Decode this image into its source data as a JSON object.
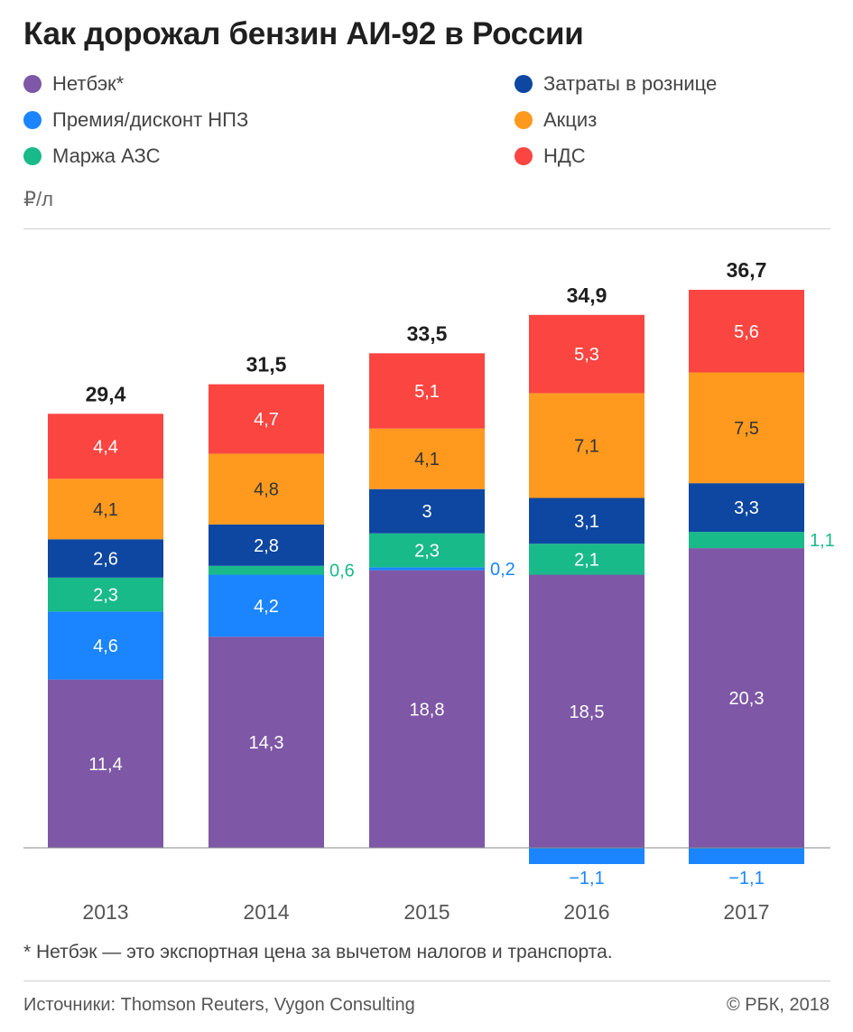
{
  "title": "Как дорожал бензин АИ-92 в России",
  "unit": "₽/л",
  "footnote": "* Нетбэк — это экспортная цена за вычетом налогов и транспорта.",
  "source": "Источники: Thomson Reuters, Vygon Consulting",
  "copyright": "© РБК, 2018",
  "chart_data": {
    "type": "bar",
    "stacked": true,
    "categories": [
      "2013",
      "2014",
      "2015",
      "2016",
      "2017"
    ],
    "totals": [
      "29,4",
      "31,5",
      "33,5",
      "34,9",
      "36,7"
    ],
    "legend_position": "top",
    "grid": false,
    "ylabel": "₽/л",
    "series": [
      {
        "key": "netback",
        "name": "Нетбэк*",
        "color": "#7e57a6",
        "values": [
          11.4,
          14.3,
          18.8,
          18.5,
          20.3
        ],
        "labels": [
          "11,4",
          "14,3",
          "18,8",
          "18,5",
          "20,3"
        ]
      },
      {
        "key": "premium",
        "name": "Премия/дисконт НПЗ",
        "color": "#1a85ff",
        "values": [
          4.6,
          4.2,
          0.2,
          -1.1,
          -1.1
        ],
        "labels": [
          "4,6",
          "4,2",
          "0,2",
          "−1,1",
          "−1,1"
        ]
      },
      {
        "key": "margin",
        "name": "Маржа АЗС",
        "color": "#19ba8a",
        "values": [
          2.3,
          0.6,
          2.3,
          2.1,
          1.1
        ],
        "labels": [
          "2,3",
          "0,6",
          "2,3",
          "2,1",
          "1,1"
        ]
      },
      {
        "key": "retail",
        "name": "Затраты в рознице",
        "color": "#0d47a1",
        "values": [
          2.6,
          2.8,
          3,
          3.1,
          3.3
        ],
        "labels": [
          "2,6",
          "2,8",
          "3",
          "3,1",
          "3,3"
        ]
      },
      {
        "key": "excise",
        "name": "Акциз",
        "color": "#ff9a1f",
        "values": [
          4.1,
          4.8,
          4.1,
          7.1,
          7.5
        ],
        "labels": [
          "4,1",
          "4,8",
          "4,1",
          "7,1",
          "7,5"
        ]
      },
      {
        "key": "vat",
        "name": "НДС",
        "color": "#fb4541",
        "values": [
          4.4,
          4.7,
          5.1,
          5.3,
          5.6
        ],
        "labels": [
          "4,4",
          "4,7",
          "5,1",
          "5,3",
          "5,6"
        ]
      }
    ]
  }
}
